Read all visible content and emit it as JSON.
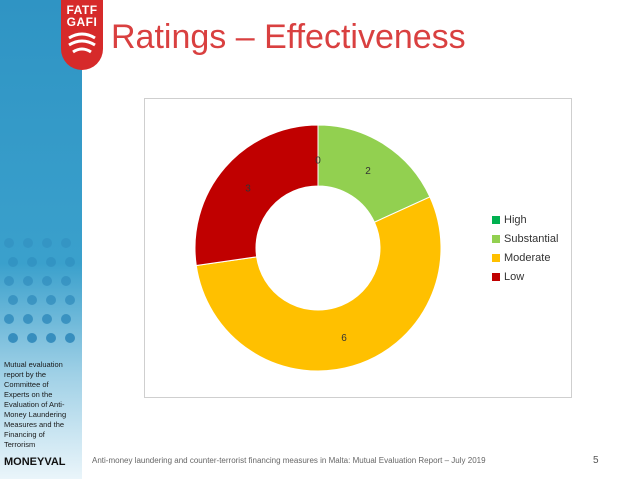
{
  "slide": {
    "title": "Ratings – Effectiveness",
    "footer": "Anti-money laundering and counter-terrorist financing measures in Malta: Mutual Evaluation Report – July 2019",
    "page_number": "5",
    "logo_line1": "FATF",
    "logo_line2": "GAFI",
    "side_text": "Mutual evaluation report by the Committee of Experts on the Evaluation of Anti-Money Laundering Measures and the Financing of Terrorism",
    "brand": "MONEYVAL"
  },
  "chart_data": {
    "type": "pie",
    "subtype": "donut",
    "categories": [
      "High",
      "Substantial",
      "Moderate",
      "Low"
    ],
    "values": [
      0,
      2,
      6,
      3
    ],
    "colors": [
      "#00b050",
      "#92d050",
      "#ffc000",
      "#c00000"
    ],
    "legend_position": "right"
  }
}
